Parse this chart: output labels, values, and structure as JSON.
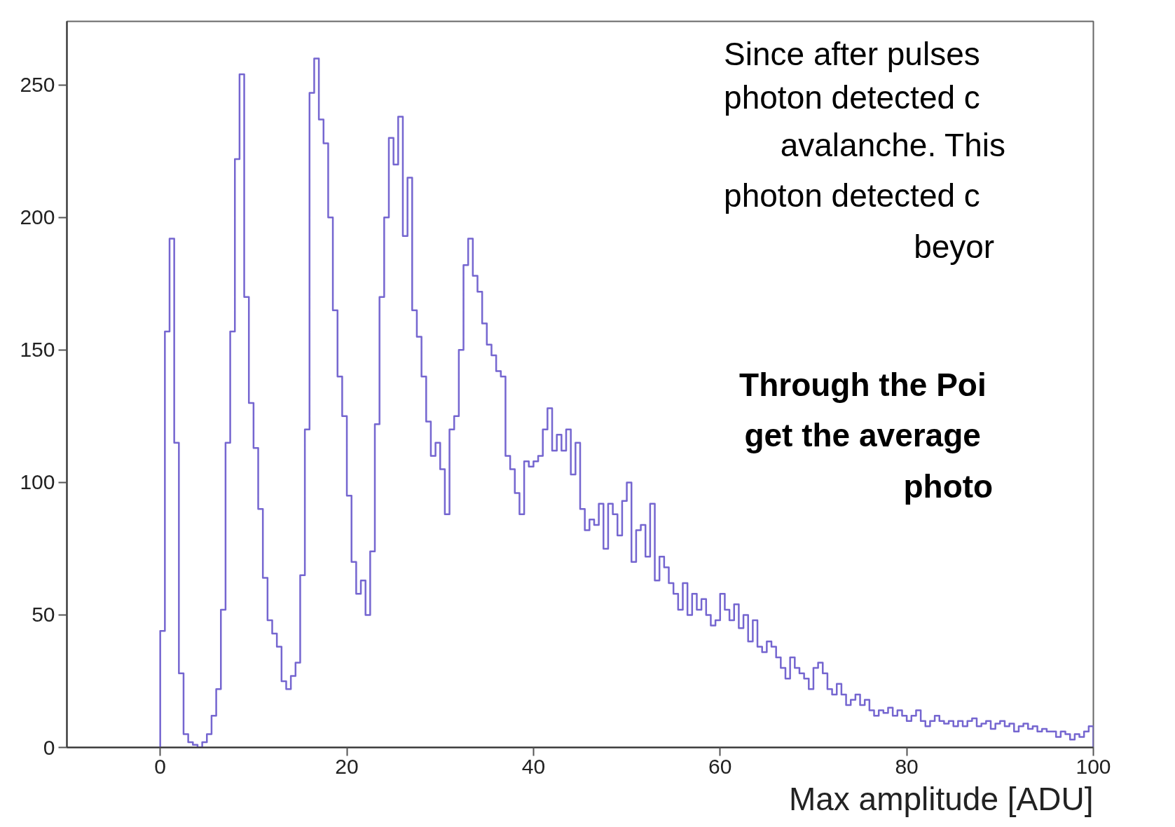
{
  "chart_data": {
    "type": "histogram",
    "xlabel": "Max amplitude [ADU]",
    "color": "#7566d0",
    "xlim": [
      -10,
      100
    ],
    "xticks": [
      0,
      20,
      40,
      60,
      80,
      100
    ],
    "ylim": [
      0,
      274
    ],
    "yticks": [
      0,
      50,
      100,
      150,
      200,
      250
    ],
    "grid": false,
    "annotations": [
      "Since after pulses",
      "photon detected c",
      "avalanche. This",
      "photon detected c",
      "beyor",
      "Through the Poi",
      "get the average",
      "photo"
    ],
    "bins": [
      0,
      0.5,
      1,
      1.5,
      2,
      2.5,
      3,
      3.5,
      4,
      4.5,
      5,
      5.5,
      6,
      6.5,
      7,
      7.5,
      8,
      8.5,
      9,
      9.5,
      10,
      10.5,
      11,
      11.5,
      12,
      12.5,
      13,
      13.5,
      14,
      14.5,
      15,
      15.5,
      16,
      16.5,
      17,
      17.5,
      18,
      18.5,
      19,
      19.5,
      20,
      20.5,
      21,
      21.5,
      22,
      22.5,
      23,
      23.5,
      24,
      24.5,
      25,
      25.5,
      26,
      26.5,
      27,
      27.5,
      28,
      28.5,
      29,
      29.5,
      30,
      30.5,
      31,
      31.5,
      32,
      32.5,
      33,
      33.5,
      34,
      34.5,
      35,
      35.5,
      36,
      36.5,
      37,
      37.5,
      38,
      38.5,
      39,
      39.5,
      40,
      40.5,
      41,
      41.5,
      42,
      42.5,
      43,
      43.5,
      44,
      44.5,
      45,
      45.5,
      46,
      46.5,
      47,
      47.5,
      48,
      48.5,
      49,
      49.5,
      50,
      50.5,
      51,
      51.5,
      52,
      52.5,
      53,
      53.5,
      54,
      54.5,
      55,
      55.5,
      56,
      56.5,
      57,
      57.5,
      58,
      58.5,
      59,
      59.5,
      60,
      60.5,
      61,
      61.5,
      62,
      62.5,
      63,
      63.5,
      64,
      64.5,
      65,
      65.5,
      66,
      66.5,
      67,
      67.5,
      68,
      68.5,
      69,
      69.5,
      70,
      70.5,
      71,
      71.5,
      72,
      72.5,
      73,
      73.5,
      74,
      74.5,
      75,
      75.5,
      76,
      76.5,
      77,
      77.5,
      78,
      78.5,
      79,
      79.5,
      80,
      80.5,
      81,
      81.5,
      82,
      82.5,
      83,
      83.5,
      84,
      84.5,
      85,
      85.5,
      86,
      86.5,
      87,
      87.5,
      88,
      88.5,
      89,
      89.5,
      90,
      90.5,
      91,
      91.5,
      92,
      92.5,
      93,
      93.5,
      94,
      94.5,
      95,
      95.5,
      96,
      96.5,
      97,
      97.5,
      98,
      98.5,
      99,
      99.5,
      100
    ],
    "values": [
      44,
      157,
      192,
      115,
      28,
      5,
      2,
      1,
      0,
      2,
      5,
      12,
      22,
      52,
      115,
      157,
      222,
      254,
      170,
      130,
      113,
      90,
      64,
      48,
      43,
      38,
      25,
      22,
      27,
      32,
      65,
      120,
      247,
      260,
      237,
      228,
      200,
      165,
      140,
      125,
      95,
      70,
      58,
      63,
      50,
      74,
      122,
      170,
      200,
      230,
      220,
      238,
      193,
      215,
      165,
      155,
      140,
      123,
      110,
      115,
      105,
      88,
      120,
      125,
      150,
      182,
      192,
      178,
      172,
      160,
      152,
      148,
      142,
      140,
      110,
      105,
      96,
      88,
      108,
      106,
      108,
      110,
      120,
      128,
      112,
      118,
      112,
      120,
      103,
      115,
      90,
      82,
      86,
      84,
      92,
      75,
      92,
      88,
      80,
      93,
      100,
      70,
      82,
      84,
      72,
      92,
      63,
      72,
      68,
      62,
      58,
      52,
      62,
      50,
      58,
      52,
      56,
      50,
      46,
      48,
      58,
      52,
      48,
      54,
      45,
      50,
      40,
      48,
      38,
      36,
      40,
      38,
      34,
      30,
      26,
      34,
      30,
      28,
      26,
      22,
      30,
      32,
      28,
      22,
      20,
      24,
      20,
      16,
      18,
      20,
      16,
      18,
      14,
      12,
      14,
      13,
      15,
      12,
      14,
      12,
      10,
      12,
      14,
      10,
      8,
      10,
      12,
      10,
      9,
      10,
      8,
      10,
      8,
      10,
      11,
      8,
      9,
      10,
      7,
      9,
      10,
      8,
      9,
      6,
      8,
      9,
      7,
      8,
      6,
      7,
      6,
      6,
      4,
      6,
      5,
      3,
      5,
      4,
      6,
      8
    ]
  }
}
